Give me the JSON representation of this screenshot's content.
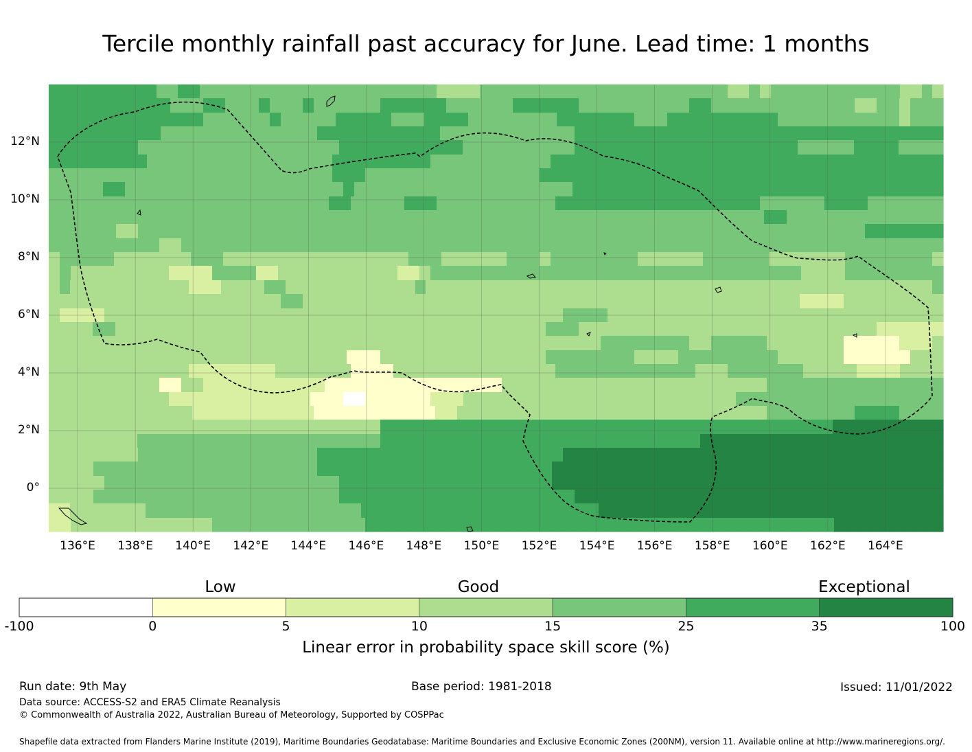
{
  "title": "Tercile monthly rainfall past accuracy for June. Lead time: 1 months",
  "map": {
    "lon_range": [
      135,
      166
    ],
    "lat_range": [
      -1.5,
      14
    ],
    "lon_ticks": [
      "136°E",
      "138°E",
      "140°E",
      "142°E",
      "144°E",
      "146°E",
      "148°E",
      "150°E",
      "152°E",
      "154°E",
      "156°E",
      "158°E",
      "160°E",
      "162°E",
      "164°E"
    ],
    "lat_ticks": [
      "12°N",
      "10°N",
      "8°N",
      "6°N",
      "4°N",
      "2°N",
      "0°"
    ],
    "grid_rows_north_to_south": [
      "55555555554455444444444444444444444433334444444444444444444444433434444444444443343",
      "555555555554445544454445444444555555444444555555444444444455444444444444433443444",
      "555555555555554444445444445555544455554444444455555554445555555555444444444443444",
      "55555555554444444444444455555555555444444444444555555555555555555555555555555555",
      "55555555444444444444444444555555555554444444444555555555555555555554444455554444",
      "5555555554444444444444444455555555544444444444555555555555555555555555555555555555",
      "4444444444444444444444444455544444444444444445555555555555555555555555555555555555",
      "4444455444444444444444444445444444444444444444445555555555555555555555555555555555",
      "44444444444444444444444444554444455544444444444555555555555555555544444455554444444",
      "44444444444444444444444444444444444444444444444444444444444444445544444444444444",
      "44444433444444444444444444444444444444444444444444444444444444444444444445555555",
      "444444444433444444444444444444444444444444444444444444444444444444444444444444444",
      "3444443333333444333333333333333334443333334443444444443333334444443333333444444443",
      "3433333333322224444223333333333322344444444444444444444444444444444443333444444444",
      "34333333333332223333443333333333334333333333333333333333333333333333333333333333334",
      "333333333333333333333443333333333333333333333333333333333333333333332222333333333",
      "32222333333333333333333333333333333333333333334444333333333333333333333333333333",
      "333344333333333333333333333333333333333333333444333333333333333333333333333222222",
      "333333333333333333333333333333333333333333333333334444444433444443333333111112223",
      "333333333333333333333333333111333333333333333444444443333444444444333333111111333",
      "33333333333332222222233333331111333333333333333444444444444433344444443333322223333",
      "333333333311332222222222211111111111111113333333333333333333333334444444444444444",
      "3333333333322222222222221110011111122233333333333333333333333334444444444444444444",
      "333333333333322222222222111111111112233333333333333333333333333334444444455554444",
      "333333333333333333333333333333555555555555555555555555555555555555555556666666666",
      "333333334444444444444444444444555555555555555555555555555556666666666666666666666",
      "33333333444444444444444455555555555555555555556666666666666666666666666666666666",
      "33334444444444444444444455555555555555555555566666666666666666666666666666666666",
      "33333444444444444444444444555555555555555555566666666666666666666666666666666666",
      "33334444444444444444444444555555555555555555555666666666666666666666666666666666",
      "22333333344444444444444444444555555555555555555555566666666666666666666666666666666",
      "2233333333333334444444444444455555555555555555555555555555555555555555556666666666"
    ]
  },
  "colorbar": {
    "boundaries": [
      "-100",
      "0",
      "5",
      "10",
      "15",
      "25",
      "35",
      "100"
    ],
    "colors": [
      "#ffffff",
      "#ffffcc",
      "#d9f0a3",
      "#addd8e",
      "#78c679",
      "#41ab5d",
      "#238443"
    ],
    "categories": [
      "Low",
      "Good",
      "Exceptional"
    ],
    "label": "Linear error in probability space skill score (%)"
  },
  "footer": {
    "run_date": "Run date: 9th May",
    "base_period": "Base period: 1981-2018",
    "issued": "Issued: 11/01/2022",
    "data_source": "Data source: ACCESS-S2 and ERA5 Climate Reanalysis",
    "copyright": "© Commonwealth of Australia 2022, Australian Bureau of Meteorology, Supported by COSPPac",
    "shapefile": "Shapefile data extracted from Flanders Marine Institute (2019), Maritime Boundaries Geodatabase: Maritime Boundaries and Exclusive Economic Zones (200NM), version 11. Available online at http://www.marineregions.org/."
  }
}
